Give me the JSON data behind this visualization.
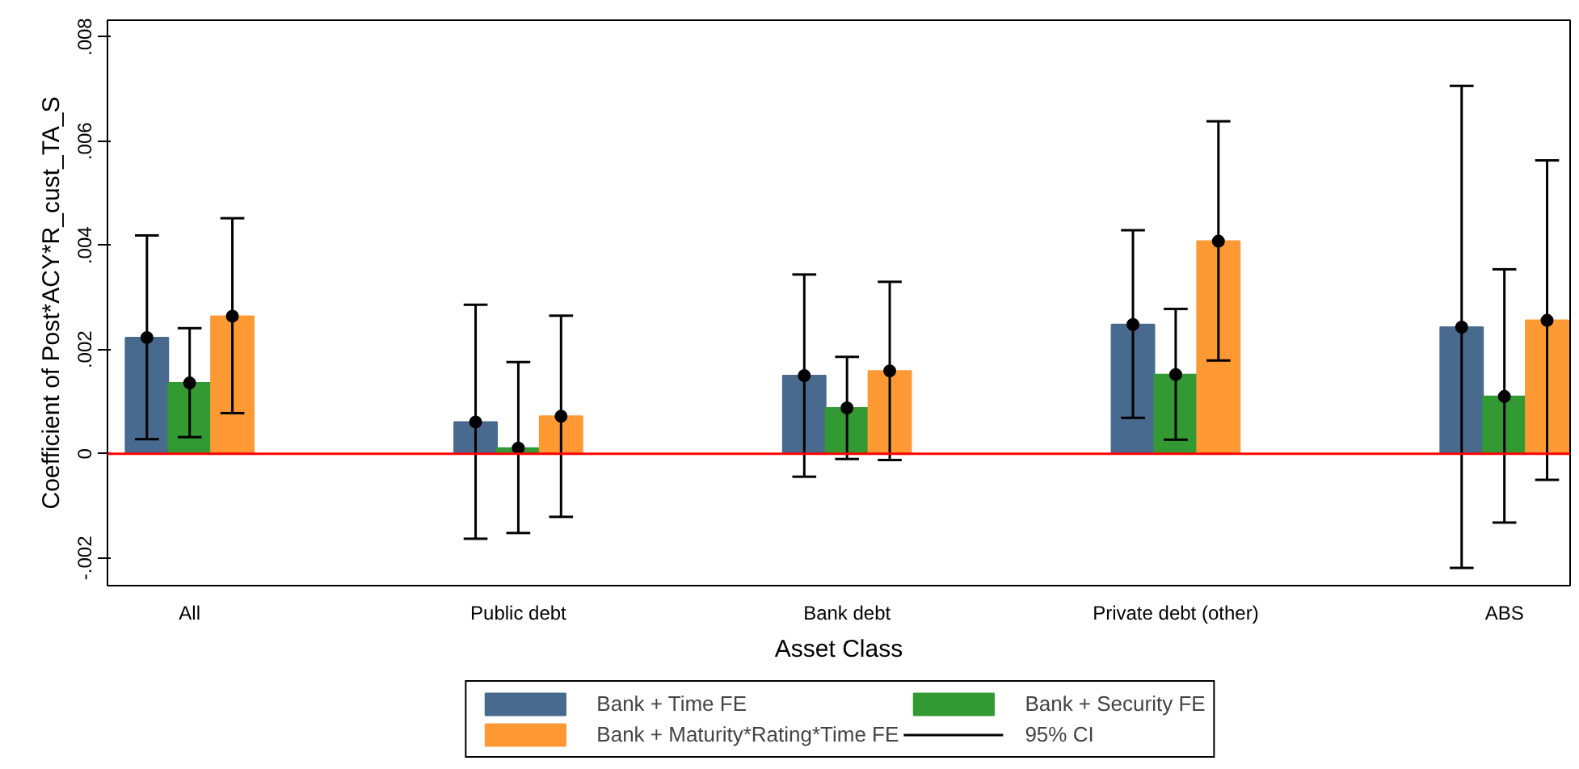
{
  "chart_data": {
    "type": "bar",
    "xlabel": "Asset Class",
    "ylabel": "Coefficient of Post*ACY*R_cust_TA_S",
    "categories": [
      "All",
      "Public debt",
      "Bank debt",
      "Private debt (other)",
      "ABS"
    ],
    "series": [
      {
        "name": "Bank + Time FE",
        "color": "#476a8e",
        "values": [
          0.00223,
          0.00061,
          0.0015,
          0.00248,
          0.00243
        ],
        "errors": [
          [
            0.00028,
            0.00419
          ],
          [
            -0.00163,
            0.00286
          ],
          [
            -0.00044,
            0.00344
          ],
          [
            0.00069,
            0.00429
          ],
          [
            -0.00219,
            0.00706
          ]
        ]
      },
      {
        "name": "Bank + Security FE",
        "color": "#339933",
        "values": [
          0.00136,
          0.00011,
          0.00088,
          0.00152,
          0.0011
        ],
        "errors": [
          [
            0.00032,
            0.00241
          ],
          [
            -0.00152,
            0.00176
          ],
          [
            -0.0001,
            0.00186
          ],
          [
            0.00027,
            0.00278
          ],
          [
            -0.00132,
            0.00354
          ]
        ]
      },
      {
        "name": "Bank + Maturity*Rating*Time FE",
        "color": "#ff9933",
        "values": [
          0.00264,
          0.00072,
          0.00159,
          0.00408,
          0.00256
        ],
        "errors": [
          [
            0.00078,
            0.00452
          ],
          [
            -0.00121,
            0.00265
          ],
          [
            -0.00012,
            0.0033
          ],
          [
            0.00179,
            0.00638
          ],
          [
            -0.0005,
            0.00563
          ]
        ]
      },
      {
        "type": "scatter",
        "color": "#000000",
        "x": [
          "All",
          "Public debt",
          "Bank debt",
          "Private debt (other)",
          "ABS"
        ],
        "values": [
          0.00223,
          0.00061,
          0.0015,
          0.00248,
          0.00243
        ]
      },
      {
        "type": "scatter",
        "color": "#000000",
        "x": [
          "All",
          "Public debt",
          "Bank debt",
          "Private debt (other)",
          "ABS"
        ],
        "values": [
          0.00136,
          0.00011,
          0.00088,
          0.00152,
          0.0011
        ]
      },
      {
        "type": "scatter",
        "color": "#000000",
        "x": [
          "All",
          "Public debt",
          "Bank debt",
          "Private debt (other)",
          "ABS"
        ],
        "values": [
          0.00264,
          0.00072,
          0.00159,
          0.00408,
          0.00256
        ]
      }
    ],
    "ylim": [
      -0.00253,
      0.00832
    ],
    "yticks": [
      {
        "value": -0.002,
        "label": "-.002"
      },
      {
        "value": 0,
        "label": "0"
      },
      {
        "value": 0.002,
        "label": ".002"
      },
      {
        "value": 0.004,
        "label": ".004"
      },
      {
        "value": 0.006,
        "label": ".006"
      },
      {
        "value": 0.008,
        "label": ".008"
      }
    ],
    "ref_lines": [
      {
        "axis": "y",
        "value": 0,
        "color": "#ff0000"
      }
    ],
    "annotations": [
      "95% CI"
    ],
    "marker": "circle",
    "grid": false,
    "legend": "bottom"
  }
}
